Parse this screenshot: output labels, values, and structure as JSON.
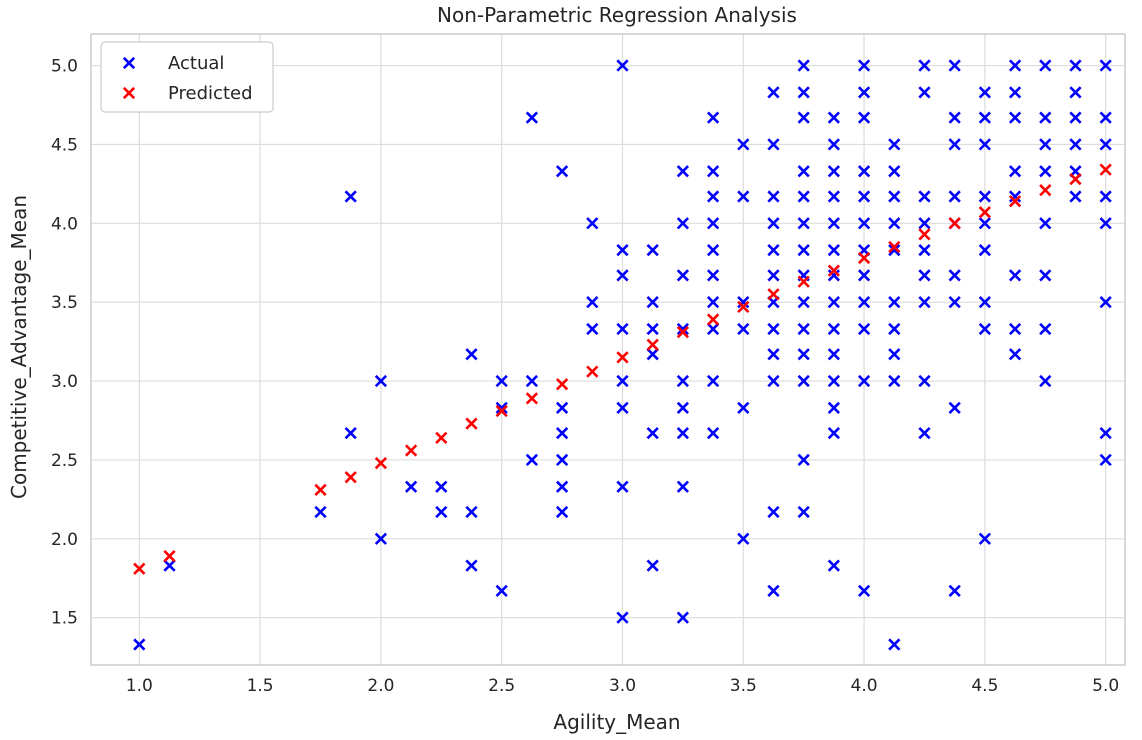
{
  "chart_data": {
    "type": "scatter",
    "title": "Non-Parametric Regression Analysis",
    "xlabel": "Agility_Mean",
    "ylabel": "Competitive_Advantage_Mean",
    "xlim": [
      0.8,
      5.08
    ],
    "ylim": [
      1.2,
      5.2
    ],
    "xticks": [
      1.0,
      1.5,
      2.0,
      2.5,
      3.0,
      3.5,
      4.0,
      4.5,
      5.0
    ],
    "yticks": [
      1.5,
      2.0,
      2.5,
      3.0,
      3.5,
      4.0,
      4.5,
      5.0
    ],
    "xtick_labels": [
      "1.0",
      "1.5",
      "2.0",
      "2.5",
      "3.0",
      "3.5",
      "4.0",
      "4.5",
      "5.0"
    ],
    "ytick_labels": [
      "1.5",
      "2.0",
      "2.5",
      "3.0",
      "3.5",
      "4.0",
      "4.5",
      "5.0"
    ],
    "grid": true,
    "legend_position": "top-left",
    "marker": "x",
    "series": [
      {
        "name": "Actual",
        "color": "#0000ff",
        "points": [
          [
            1.0,
            1.33
          ],
          [
            1.125,
            1.83
          ],
          [
            1.75,
            2.17
          ],
          [
            1.875,
            4.17
          ],
          [
            1.875,
            2.67
          ],
          [
            2.0,
            3.0
          ],
          [
            2.0,
            2.0
          ],
          [
            2.125,
            2.33
          ],
          [
            2.25,
            2.33
          ],
          [
            2.25,
            2.17
          ],
          [
            2.375,
            3.17
          ],
          [
            2.375,
            2.17
          ],
          [
            2.375,
            1.83
          ],
          [
            2.5,
            3.0
          ],
          [
            2.5,
            2.83
          ],
          [
            2.5,
            1.67
          ],
          [
            2.625,
            4.67
          ],
          [
            2.625,
            3.0
          ],
          [
            2.625,
            2.5
          ],
          [
            2.75,
            4.33
          ],
          [
            2.75,
            2.83
          ],
          [
            2.75,
            2.67
          ],
          [
            2.75,
            2.5
          ],
          [
            2.75,
            2.33
          ],
          [
            2.75,
            2.17
          ],
          [
            2.875,
            4.0
          ],
          [
            2.875,
            3.5
          ],
          [
            2.875,
            3.33
          ],
          [
            3.0,
            5.0
          ],
          [
            3.0,
            3.83
          ],
          [
            3.0,
            3.67
          ],
          [
            3.0,
            3.33
          ],
          [
            3.0,
            3.0
          ],
          [
            3.0,
            2.83
          ],
          [
            3.0,
            2.33
          ],
          [
            3.0,
            1.5
          ],
          [
            3.125,
            3.83
          ],
          [
            3.125,
            3.5
          ],
          [
            3.125,
            3.33
          ],
          [
            3.125,
            3.17
          ],
          [
            3.125,
            2.67
          ],
          [
            3.125,
            1.83
          ],
          [
            3.25,
            4.33
          ],
          [
            3.25,
            4.0
          ],
          [
            3.25,
            3.67
          ],
          [
            3.25,
            3.33
          ],
          [
            3.25,
            3.0
          ],
          [
            3.25,
            2.83
          ],
          [
            3.25,
            2.67
          ],
          [
            3.25,
            2.33
          ],
          [
            3.25,
            1.5
          ],
          [
            3.375,
            4.67
          ],
          [
            3.375,
            4.33
          ],
          [
            3.375,
            4.17
          ],
          [
            3.375,
            4.0
          ],
          [
            3.375,
            3.83
          ],
          [
            3.375,
            3.67
          ],
          [
            3.375,
            3.5
          ],
          [
            3.375,
            3.33
          ],
          [
            3.375,
            3.0
          ],
          [
            3.375,
            2.67
          ],
          [
            3.5,
            4.5
          ],
          [
            3.5,
            4.17
          ],
          [
            3.5,
            3.5
          ],
          [
            3.5,
            3.33
          ],
          [
            3.5,
            2.83
          ],
          [
            3.5,
            2.0
          ],
          [
            3.625,
            4.83
          ],
          [
            3.625,
            4.5
          ],
          [
            3.625,
            4.17
          ],
          [
            3.625,
            4.0
          ],
          [
            3.625,
            3.83
          ],
          [
            3.625,
            3.67
          ],
          [
            3.625,
            3.5
          ],
          [
            3.625,
            3.33
          ],
          [
            3.625,
            3.17
          ],
          [
            3.625,
            3.0
          ],
          [
            3.625,
            2.17
          ],
          [
            3.625,
            1.67
          ],
          [
            3.75,
            5.0
          ],
          [
            3.75,
            4.83
          ],
          [
            3.75,
            4.67
          ],
          [
            3.75,
            4.33
          ],
          [
            3.75,
            4.17
          ],
          [
            3.75,
            4.0
          ],
          [
            3.75,
            3.83
          ],
          [
            3.75,
            3.67
          ],
          [
            3.75,
            3.5
          ],
          [
            3.75,
            3.33
          ],
          [
            3.75,
            3.17
          ],
          [
            3.75,
            3.0
          ],
          [
            3.75,
            2.5
          ],
          [
            3.75,
            2.17
          ],
          [
            3.875,
            4.67
          ],
          [
            3.875,
            4.5
          ],
          [
            3.875,
            4.33
          ],
          [
            3.875,
            4.17
          ],
          [
            3.875,
            4.0
          ],
          [
            3.875,
            3.83
          ],
          [
            3.875,
            3.67
          ],
          [
            3.875,
            3.5
          ],
          [
            3.875,
            3.33
          ],
          [
            3.875,
            3.17
          ],
          [
            3.875,
            3.0
          ],
          [
            3.875,
            2.83
          ],
          [
            3.875,
            2.67
          ],
          [
            3.875,
            1.83
          ],
          [
            4.0,
            5.0
          ],
          [
            4.0,
            4.83
          ],
          [
            4.0,
            4.67
          ],
          [
            4.0,
            4.33
          ],
          [
            4.0,
            4.17
          ],
          [
            4.0,
            4.0
          ],
          [
            4.0,
            3.83
          ],
          [
            4.0,
            3.67
          ],
          [
            4.0,
            3.5
          ],
          [
            4.0,
            3.33
          ],
          [
            4.0,
            3.0
          ],
          [
            4.0,
            1.67
          ],
          [
            4.125,
            4.5
          ],
          [
            4.125,
            4.33
          ],
          [
            4.125,
            4.17
          ],
          [
            4.125,
            4.0
          ],
          [
            4.125,
            3.83
          ],
          [
            4.125,
            3.5
          ],
          [
            4.125,
            3.33
          ],
          [
            4.125,
            3.17
          ],
          [
            4.125,
            3.0
          ],
          [
            4.125,
            1.33
          ],
          [
            4.25,
            5.0
          ],
          [
            4.25,
            4.83
          ],
          [
            4.25,
            4.17
          ],
          [
            4.25,
            4.0
          ],
          [
            4.25,
            3.83
          ],
          [
            4.25,
            3.67
          ],
          [
            4.25,
            3.5
          ],
          [
            4.25,
            3.0
          ],
          [
            4.25,
            2.67
          ],
          [
            4.375,
            5.0
          ],
          [
            4.375,
            4.67
          ],
          [
            4.375,
            4.5
          ],
          [
            4.375,
            4.17
          ],
          [
            4.375,
            4.0
          ],
          [
            4.375,
            3.67
          ],
          [
            4.375,
            3.5
          ],
          [
            4.375,
            2.83
          ],
          [
            4.375,
            1.67
          ],
          [
            4.5,
            4.83
          ],
          [
            4.5,
            4.67
          ],
          [
            4.5,
            4.5
          ],
          [
            4.5,
            4.17
          ],
          [
            4.5,
            4.0
          ],
          [
            4.5,
            3.83
          ],
          [
            4.5,
            3.5
          ],
          [
            4.5,
            3.33
          ],
          [
            4.5,
            2.0
          ],
          [
            4.625,
            5.0
          ],
          [
            4.625,
            4.83
          ],
          [
            4.625,
            4.67
          ],
          [
            4.625,
            4.33
          ],
          [
            4.625,
            4.17
          ],
          [
            4.625,
            3.67
          ],
          [
            4.625,
            3.33
          ],
          [
            4.625,
            3.17
          ],
          [
            4.75,
            5.0
          ],
          [
            4.75,
            4.67
          ],
          [
            4.75,
            4.5
          ],
          [
            4.75,
            4.33
          ],
          [
            4.75,
            4.0
          ],
          [
            4.75,
            3.67
          ],
          [
            4.75,
            3.33
          ],
          [
            4.75,
            3.0
          ],
          [
            4.875,
            5.0
          ],
          [
            4.875,
            4.83
          ],
          [
            4.875,
            4.67
          ],
          [
            4.875,
            4.5
          ],
          [
            4.875,
            4.33
          ],
          [
            4.875,
            4.17
          ],
          [
            5.0,
            5.0
          ],
          [
            5.0,
            4.67
          ],
          [
            5.0,
            4.5
          ],
          [
            5.0,
            4.17
          ],
          [
            5.0,
            4.0
          ],
          [
            5.0,
            3.5
          ],
          [
            5.0,
            2.67
          ],
          [
            5.0,
            2.5
          ]
        ]
      },
      {
        "name": "Predicted",
        "color": "#ff0000",
        "points": [
          [
            1.0,
            1.81
          ],
          [
            1.125,
            1.89
          ],
          [
            1.75,
            2.31
          ],
          [
            1.875,
            2.39
          ],
          [
            2.0,
            2.48
          ],
          [
            2.125,
            2.56
          ],
          [
            2.25,
            2.64
          ],
          [
            2.375,
            2.73
          ],
          [
            2.5,
            2.81
          ],
          [
            2.625,
            2.89
          ],
          [
            2.75,
            2.98
          ],
          [
            2.875,
            3.06
          ],
          [
            3.0,
            3.15
          ],
          [
            3.125,
            3.23
          ],
          [
            3.25,
            3.31
          ],
          [
            3.375,
            3.39
          ],
          [
            3.5,
            3.47
          ],
          [
            3.625,
            3.55
          ],
          [
            3.75,
            3.63
          ],
          [
            3.875,
            3.7
          ],
          [
            4.0,
            3.78
          ],
          [
            4.125,
            3.85
          ],
          [
            4.25,
            3.93
          ],
          [
            4.375,
            4.0
          ],
          [
            4.5,
            4.07
          ],
          [
            4.625,
            4.14
          ],
          [
            4.75,
            4.21
          ],
          [
            4.875,
            4.28
          ],
          [
            5.0,
            4.34
          ]
        ]
      }
    ]
  }
}
